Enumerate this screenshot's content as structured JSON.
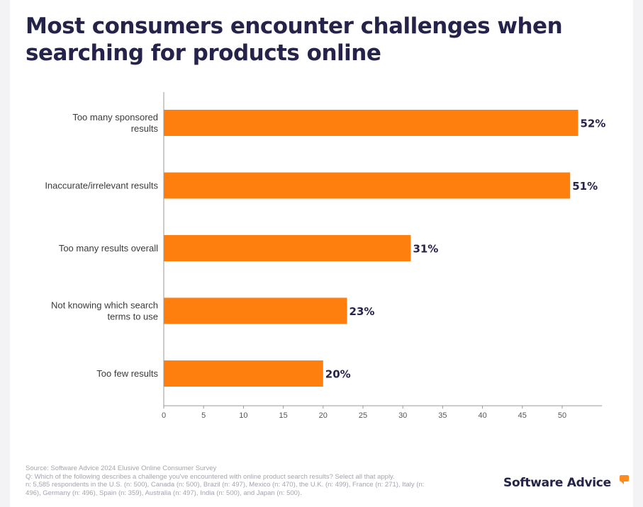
{
  "title": "Most consumers encounter challenges when searching for products online",
  "chart_data": {
    "type": "bar",
    "orientation": "horizontal",
    "categories": [
      "Too many sponsored results",
      "Inaccurate/irrelevant results",
      "Too many results overall",
      "Not knowing which search terms to use",
      "Too few results"
    ],
    "category_lines": [
      [
        "Too many sponsored",
        "results"
      ],
      [
        "Inaccurate/irrelevant results"
      ],
      [
        "Too many results overall"
      ],
      [
        "Not knowing which search",
        "terms to use"
      ],
      [
        "Too few results"
      ]
    ],
    "values": [
      52,
      51,
      31,
      23,
      20
    ],
    "value_labels": [
      "52%",
      "51%",
      "31%",
      "23%",
      "20%"
    ],
    "xlim": [
      0,
      55
    ],
    "xticks": [
      0,
      5,
      10,
      15,
      20,
      25,
      30,
      35,
      40,
      45,
      50
    ],
    "bar_color": "#ff7f0e",
    "grid": false,
    "xlabel": "",
    "ylabel": ""
  },
  "source_lines": [
    "Source: Software Advice 2024 Elusive Online Consumer Survey",
    "Q: Which of the following describes a challenge you've encountered with online product search results? Select all that apply.",
    "n: 5,585 respondents in the U.S. (n: 500), Canada (n: 500), Brazil (n: 497), Mexico (n: 470), the U.K. (n: 499), France (n: 271), Italy (n:",
    "496), Germany (n: 496), Spain (n: 359), Australia (n: 497), India (n: 500), and Japan (n: 500)."
  ],
  "brand": {
    "name": "Software Advice",
    "mark_color": "#ff8a1f"
  }
}
